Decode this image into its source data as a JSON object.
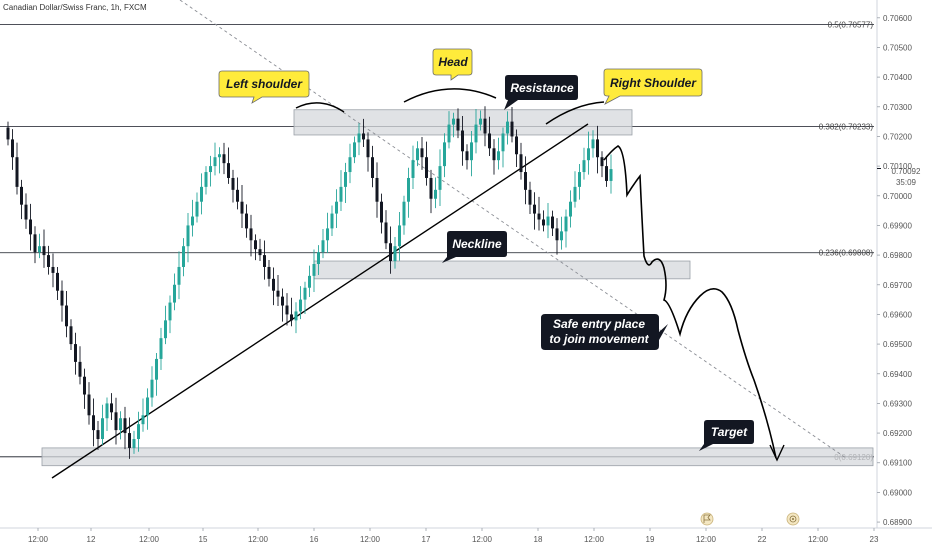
{
  "chart_data": {
    "type": "candlestick",
    "title": "Canadian Dollar/Swiss Franc, 1h, FXCM",
    "ylim": [
      0.6888,
      0.7066
    ],
    "y_ticks": [
      0.706,
      0.705,
      0.704,
      0.703,
      0.702,
      0.701,
      0.7,
      0.699,
      0.698,
      0.697,
      0.696,
      0.695,
      0.694,
      0.693,
      0.692,
      0.691,
      0.69,
      0.689
    ],
    "x_ticks": [
      {
        "label": "12:00",
        "x": 38
      },
      {
        "label": "12",
        "x": 91
      },
      {
        "label": "12:00",
        "x": 149
      },
      {
        "label": "15",
        "x": 203
      },
      {
        "label": "12:00",
        "x": 258
      },
      {
        "label": "16",
        "x": 314
      },
      {
        "label": "12:00",
        "x": 370
      },
      {
        "label": "17",
        "x": 426
      },
      {
        "label": "12:00",
        "x": 482
      },
      {
        "label": "18",
        "x": 538
      },
      {
        "label": "12:00",
        "x": 594
      },
      {
        "label": "19",
        "x": 650
      },
      {
        "label": "12:00",
        "x": 706
      },
      {
        "label": "22",
        "x": 762
      },
      {
        "label": "12:00",
        "x": 818
      },
      {
        "label": "23",
        "x": 874
      }
    ],
    "current_price": {
      "value": "0.70092",
      "countdown": "35:09"
    },
    "fib_levels": [
      {
        "label": "0.5(0.70577)",
        "value": 0.70577
      },
      {
        "label": "0.382(0.70233)",
        "value": 0.70233
      },
      {
        "label": "0.236(0.69808)",
        "value": 0.69808
      },
      {
        "label": "0(0.69120)",
        "value": 0.6912
      }
    ],
    "zones": [
      {
        "name": "resistance-zone",
        "y_top": 0.7029,
        "y_bottom": 0.70205
      },
      {
        "name": "neckline-zone",
        "y_top": 0.6978,
        "y_bottom": 0.6972
      },
      {
        "name": "target-zone",
        "y_top": 0.6915,
        "y_bottom": 0.6909
      }
    ],
    "candles_seed": [
      0.7019,
      0.7013,
      0.7003,
      0.6997,
      0.6992,
      0.6987,
      0.6981,
      0.6983,
      0.698,
      0.6976,
      0.6974,
      0.6968,
      0.6963,
      0.6956,
      0.695,
      0.6944,
      0.6939,
      0.6933,
      0.6926,
      0.6921,
      0.6918,
      0.6925,
      0.693,
      0.6927,
      0.6921,
      0.6925,
      0.692,
      0.6915,
      0.6918,
      0.6923,
      0.6926,
      0.6932,
      0.6938,
      0.6945,
      0.6952,
      0.6958,
      0.6964,
      0.697,
      0.6976,
      0.6983,
      0.699,
      0.6993,
      0.6998,
      0.7003,
      0.7008,
      0.701,
      0.7013,
      0.7014,
      0.7011,
      0.7006,
      0.7002,
      0.6998,
      0.6994,
      0.6989,
      0.6985,
      0.6982,
      0.698,
      0.6976,
      0.6972,
      0.6968,
      0.6966,
      0.6963,
      0.696,
      0.6958,
      0.6961,
      0.6965,
      0.6969,
      0.6973,
      0.6977,
      0.6981,
      0.6985,
      0.6989,
      0.6994,
      0.6998,
      0.7003,
      0.7008,
      0.7013,
      0.7018,
      0.7021,
      0.7019,
      0.7013,
      0.7006,
      0.6998,
      0.6991,
      0.6984,
      0.6978,
      0.6983,
      0.699,
      0.6998,
      0.7006,
      0.7012,
      0.7016,
      0.7013,
      0.7006,
      0.6999,
      0.7002,
      0.701,
      0.7018,
      0.7024,
      0.7026,
      0.7022,
      0.7015,
      0.7012,
      0.7018,
      0.7024,
      0.7026,
      0.7021,
      0.7016,
      0.7012,
      0.7015,
      0.7021,
      0.7025,
      0.702,
      0.7014,
      0.7008,
      0.7002,
      0.6997,
      0.6994,
      0.6992,
      0.699,
      0.6993,
      0.6989,
      0.6985,
      0.6988,
      0.6993,
      0.6998,
      0.7003,
      0.7008,
      0.7012,
      0.7016,
      0.7019,
      0.7013,
      0.701,
      0.7005,
      0.7009
    ]
  },
  "annotations": {
    "left_shoulder": "Left shoulder",
    "head": "Head",
    "resistance": "Resistance",
    "right_shoulder": "Right Shoulder",
    "neckline": "Neckline",
    "entry_line1": "Safe entry place",
    "entry_line2": "to join movement",
    "target": "Target"
  },
  "colors": {
    "bullish": "#26a69a",
    "bearish": "#131722",
    "callout_yellow": "#ffeb3b",
    "callout_dark": "#131722",
    "zone_fill": "#d6d8dc",
    "grid_line": "#131722"
  },
  "bottom_icons": [
    "flag-icon",
    "bullseye-icon"
  ]
}
